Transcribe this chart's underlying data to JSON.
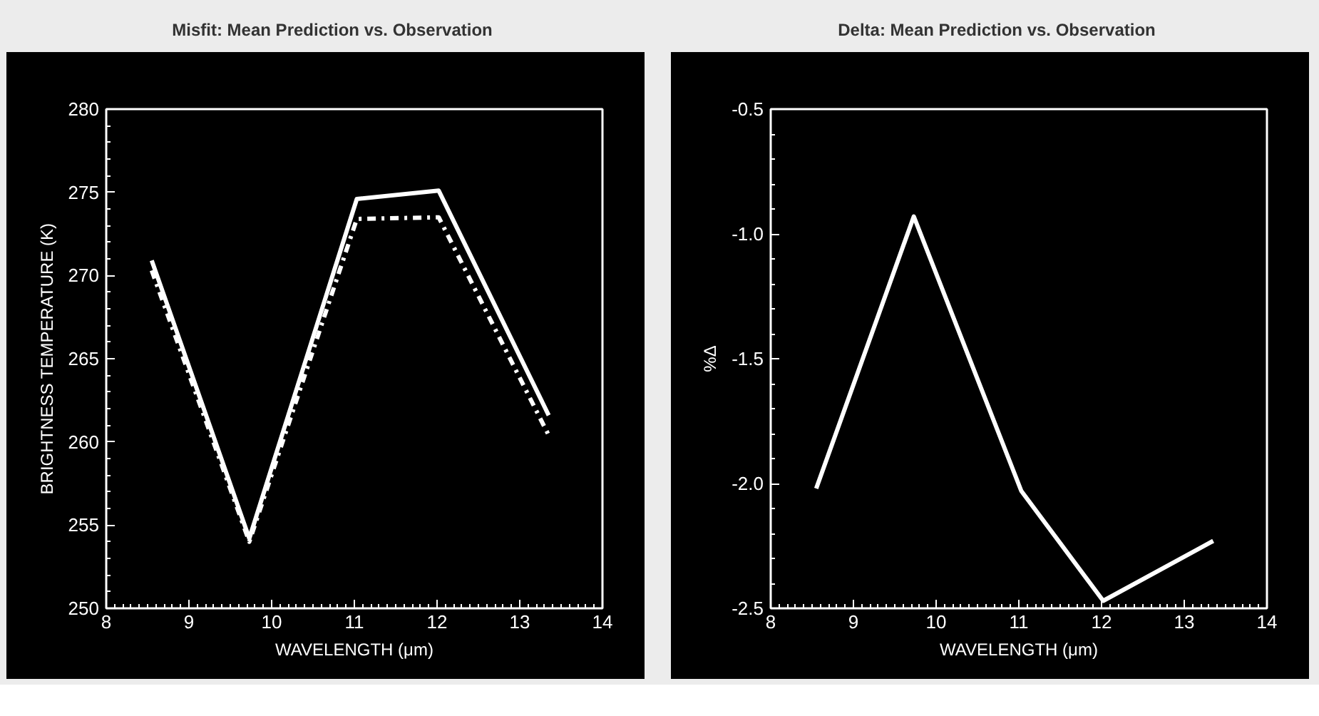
{
  "chart_data": [
    {
      "type": "line",
      "title": "Misfit: Mean Prediction vs. Observation",
      "xlabel": "WAVELENGTH (μm)",
      "ylabel": "BRIGHTNESS TEMPERATURE (K)",
      "x": [
        8.55,
        9.73,
        11.03,
        12.02,
        13.35
      ],
      "series": [
        {
          "color": "#ffffff",
          "line_style": "solid",
          "values": [
            270.9,
            254.2,
            274.6,
            275.1,
            261.6
          ]
        },
        {
          "color": "#ffffff",
          "line_style": "dashed",
          "values": [
            270.3,
            254.0,
            273.4,
            273.5,
            260.4
          ]
        }
      ],
      "xlim": [
        8,
        14
      ],
      "xticks": [
        8,
        9,
        10,
        11,
        12,
        13,
        14
      ],
      "ylim": [
        250,
        280
      ],
      "yticks": [
        250,
        255,
        260,
        265,
        270,
        275,
        280
      ]
    },
    {
      "type": "line",
      "title": "Delta: Mean Prediction vs. Observation",
      "xlabel": "WAVELENGTH (μm)",
      "ylabel": "%Δ",
      "x": [
        8.55,
        9.73,
        11.03,
        12.02,
        13.35
      ],
      "series": [
        {
          "color": "#ffffff",
          "line_style": "solid",
          "values": [
            -2.02,
            -0.93,
            -2.03,
            -2.47,
            -2.23
          ]
        }
      ],
      "xlim": [
        8,
        14
      ],
      "xticks": [
        8,
        9,
        10,
        11,
        12,
        13,
        14
      ],
      "ylim": [
        -2.5,
        -0.5
      ],
      "yticks": [
        -2.5,
        {
          "value": -2.0,
          "label": "-2.0"
        },
        -1.5,
        {
          "value": -1.0,
          "label": "-1.0"
        },
        -0.5
      ]
    }
  ]
}
